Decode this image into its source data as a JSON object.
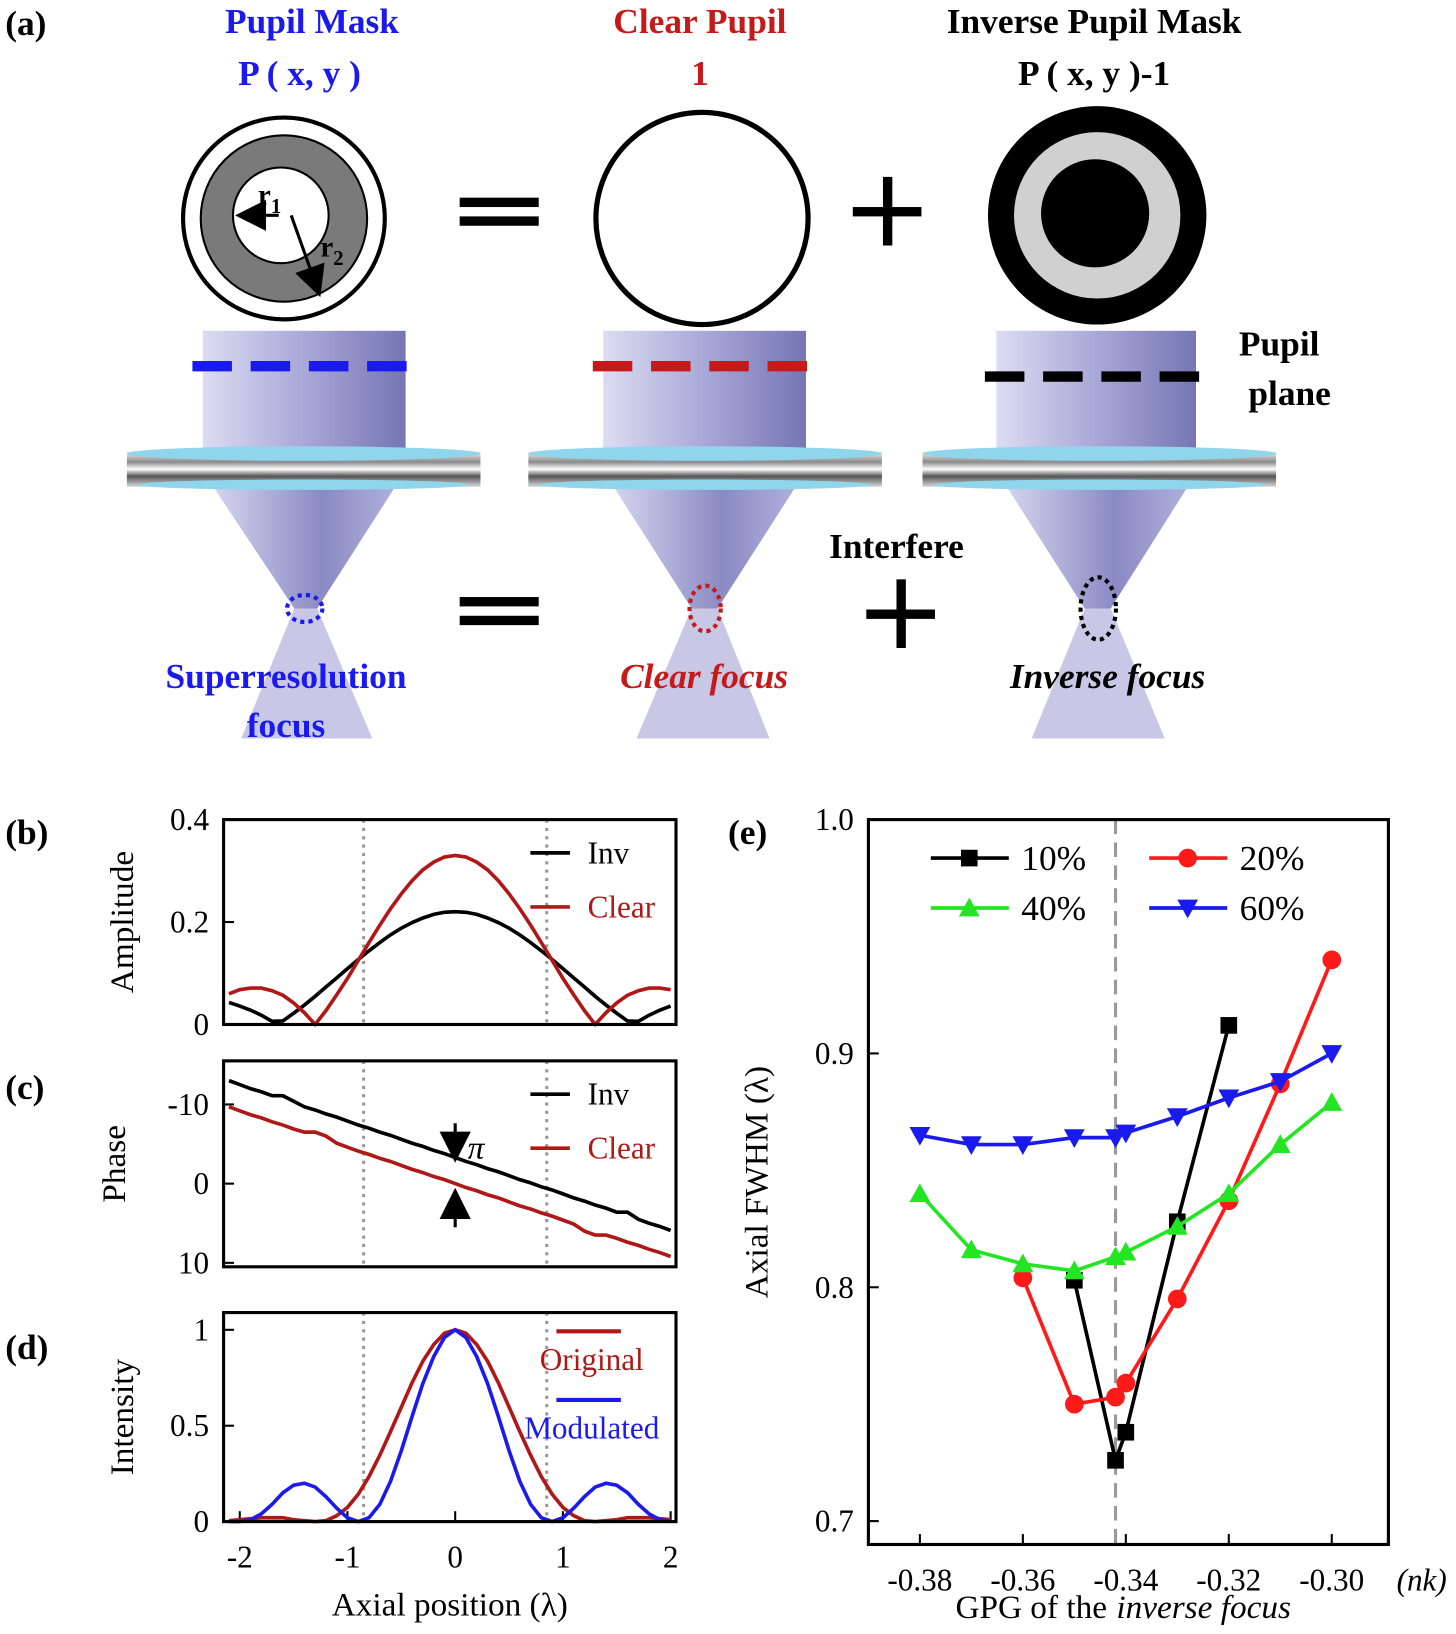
{
  "diagram": {
    "panel_label": "(a)",
    "columns": [
      {
        "title": "Pupil Mask",
        "formula": "P ( x, y )",
        "focus_label": [
          "Superresolution",
          "focus"
        ]
      },
      {
        "title": "Clear Pupil",
        "formula": "1",
        "focus_label": [
          "Clear focus"
        ]
      },
      {
        "title": "Inverse Pupil Mask",
        "formula": "P ( x, y )-1",
        "focus_label": [
          "Inverse focus"
        ]
      }
    ],
    "radius_labels": [
      {
        "base": "r",
        "sub": "1"
      },
      {
        "base": "r",
        "sub": "2"
      }
    ],
    "plane_label": [
      "Pupil",
      "plane"
    ],
    "interfere_label": "Interfere"
  },
  "chart_data": [
    {
      "type": "line",
      "panel_label": "(b)",
      "ylabel": "Amplitude",
      "x": [
        -2.1,
        -2.0,
        -1.9,
        -1.8,
        -1.7,
        -1.6,
        -1.5,
        -1.4,
        -1.3,
        -1.2,
        -1.1,
        -1.0,
        -0.9,
        -0.8,
        -0.7,
        -0.6,
        -0.5,
        -0.4,
        -0.3,
        -0.2,
        -0.1,
        0,
        0.1,
        0.2,
        0.3,
        0.4,
        0.5,
        0.6,
        0.7,
        0.8,
        0.9,
        1.0,
        1.1,
        1.2,
        1.3,
        1.4,
        1.5,
        1.6,
        1.7,
        1.8,
        1.9,
        2.0
      ],
      "series": [
        {
          "name": "Inv",
          "color": "#000000",
          "values": [
            0.043,
            0.036,
            0.028,
            0.018,
            0.006,
            0.007,
            0.022,
            0.038,
            0.055,
            0.073,
            0.091,
            0.109,
            0.127,
            0.144,
            0.16,
            0.175,
            0.188,
            0.199,
            0.208,
            0.215,
            0.219,
            0.22,
            0.219,
            0.215,
            0.208,
            0.199,
            0.188,
            0.175,
            0.16,
            0.144,
            0.127,
            0.109,
            0.091,
            0.073,
            0.055,
            0.038,
            0.022,
            0.007,
            0.006,
            0.018,
            0.028,
            0.036
          ]
        },
        {
          "name": "Clear",
          "color": "#b01818",
          "values": [
            0.06,
            0.068,
            0.071,
            0.071,
            0.066,
            0.057,
            0.042,
            0.023,
            0,
            0.027,
            0.058,
            0.09,
            0.125,
            0.16,
            0.194,
            0.226,
            0.255,
            0.281,
            0.302,
            0.317,
            0.327,
            0.33,
            0.327,
            0.317,
            0.302,
            0.281,
            0.255,
            0.226,
            0.194,
            0.16,
            0.125,
            0.09,
            0.058,
            0.027,
            0,
            0.023,
            0.042,
            0.057,
            0.066,
            0.071,
            0.071,
            0.068
          ]
        }
      ],
      "xlim": [
        -2.15,
        2.05
      ],
      "ylim": [
        0,
        0.4
      ],
      "yticks": [
        0,
        0.2,
        0.4
      ],
      "vlines": [
        -0.85,
        0.85
      ],
      "legend": "upper right",
      "grid": false
    },
    {
      "type": "line",
      "panel_label": "(c)",
      "ylabel": "Phase",
      "annotation": "π",
      "x": [
        -2.1,
        -2.0,
        -1.9,
        -1.8,
        -1.7,
        -1.6,
        -1.5,
        -1.4,
        -1.3,
        -1.2,
        -1.1,
        -1.0,
        -0.9,
        -0.8,
        -0.7,
        -0.6,
        -0.5,
        -0.4,
        -0.3,
        -0.2,
        -0.1,
        0,
        0.1,
        0.2,
        0.3,
        0.4,
        0.5,
        0.6,
        0.7,
        0.8,
        0.9,
        1.0,
        1.1,
        1.2,
        1.3,
        1.4,
        1.5,
        1.6,
        1.7,
        1.8,
        1.9,
        2.0
      ],
      "series": [
        {
          "name": "Inv",
          "color": "#000000",
          "values": [
            -13.0,
            -12.5,
            -12.0,
            -11.6,
            -11.1,
            -11.1,
            -10.4,
            -9.7,
            -9.3,
            -8.8,
            -8.4,
            -7.9,
            -7.4,
            -7.0,
            -6.5,
            -6.1,
            -5.6,
            -5.1,
            -4.7,
            -4.2,
            -3.8,
            -3.3,
            -2.8,
            -2.4,
            -1.9,
            -1.5,
            -1.0,
            -0.5,
            -0.1,
            0.4,
            0.8,
            1.3,
            1.8,
            2.2,
            2.7,
            3.1,
            3.6,
            3.6,
            4.5,
            5.0,
            5.4,
            5.9
          ]
        },
        {
          "name": "Clear",
          "color": "#b01818",
          "values": [
            -9.7,
            -9.2,
            -8.7,
            -8.3,
            -7.8,
            -7.4,
            -6.9,
            -6.5,
            -6.5,
            -6.0,
            -5.1,
            -4.6,
            -4.1,
            -3.7,
            -3.2,
            -2.8,
            -2.3,
            -1.8,
            -1.4,
            -0.9,
            -0.5,
            0,
            0.5,
            0.9,
            1.4,
            1.8,
            2.3,
            2.8,
            3.2,
            3.7,
            4.1,
            4.6,
            5.1,
            6.0,
            6.5,
            6.5,
            6.9,
            7.4,
            7.8,
            8.3,
            8.7,
            9.2
          ]
        }
      ],
      "xlim": [
        -2.15,
        2.05
      ],
      "ylim": [
        -15.5,
        10.5
      ],
      "y_inverted": true,
      "yticks": [
        -10,
        0,
        10
      ],
      "vlines": [
        -0.85,
        0.85
      ],
      "legend": "upper right",
      "grid": false
    },
    {
      "type": "line",
      "panel_label": "(d)",
      "ylabel": "Intensity",
      "xlabel": "Axial position (λ)",
      "x": [
        -2.1,
        -2.0,
        -1.9,
        -1.8,
        -1.7,
        -1.6,
        -1.5,
        -1.4,
        -1.3,
        -1.2,
        -1.1,
        -1.0,
        -0.9,
        -0.8,
        -0.7,
        -0.6,
        -0.5,
        -0.4,
        -0.3,
        -0.2,
        -0.1,
        0,
        0.1,
        0.2,
        0.3,
        0.4,
        0.5,
        0.6,
        0.7,
        0.8,
        0.9,
        1.0,
        1.1,
        1.2,
        1.3,
        1.4,
        1.5,
        1.6,
        1.7,
        1.8,
        1.9,
        2.0
      ],
      "series": [
        {
          "name": "Original",
          "color": "#b01818",
          "values": [
            0.005,
            0.01,
            0.015,
            0.02,
            0.02,
            0.02,
            0.01,
            0.005,
            0,
            0.005,
            0.031,
            0.074,
            0.143,
            0.235,
            0.346,
            0.469,
            0.597,
            0.725,
            0.837,
            0.923,
            0.982,
            1,
            0.982,
            0.923,
            0.837,
            0.725,
            0.597,
            0.469,
            0.346,
            0.235,
            0.143,
            0.074,
            0.031,
            0.005,
            0,
            0.005,
            0.01,
            0.02,
            0.02,
            0.02,
            0.015,
            0.01
          ]
        },
        {
          "name": "Modulated",
          "color": "#1a1aee",
          "values": [
            0,
            0,
            0.01,
            0.04,
            0.09,
            0.15,
            0.19,
            0.2,
            0.18,
            0.13,
            0.07,
            0.02,
            0,
            0.02,
            0.09,
            0.21,
            0.37,
            0.55,
            0.72,
            0.86,
            0.96,
            1,
            0.96,
            0.86,
            0.72,
            0.55,
            0.37,
            0.21,
            0.09,
            0.02,
            0,
            0.02,
            0.07,
            0.13,
            0.18,
            0.2,
            0.19,
            0.15,
            0.09,
            0.04,
            0.01,
            0
          ]
        }
      ],
      "xlim": [
        -2.15,
        2.05
      ],
      "ylim": [
        0,
        1.09
      ],
      "xticks": [
        -2,
        -1,
        0,
        1,
        2
      ],
      "yticks": [
        0,
        0.5,
        1
      ],
      "vlines": [
        -0.85,
        0.85
      ],
      "legend": "upper right",
      "grid": false
    },
    {
      "type": "line",
      "panel_label": "(e)",
      "ylabel": "Axial FWHM (λ)",
      "xlabel": [
        "GPG of the",
        "inverse focus"
      ],
      "xunit": "(nk)",
      "series": [
        {
          "name": "10%",
          "color": "#000000",
          "marker": "square",
          "x": [
            -0.35,
            -0.342,
            -0.34,
            -0.33,
            -0.32
          ],
          "values": [
            0.803,
            0.726,
            0.738,
            0.828,
            0.912
          ]
        },
        {
          "name": "20%",
          "color": "#ff1a1a",
          "marker": "circle",
          "x": [
            -0.36,
            -0.35,
            -0.342,
            -0.34,
            -0.33,
            -0.32,
            -0.31,
            -0.3
          ],
          "values": [
            0.804,
            0.75,
            0.753,
            0.759,
            0.795,
            0.837,
            0.887,
            0.94
          ]
        },
        {
          "name": "40%",
          "color": "#22e622",
          "marker": "triangle",
          "x": [
            -0.38,
            -0.37,
            -0.36,
            -0.35,
            -0.342,
            -0.34,
            -0.33,
            -0.32,
            -0.31,
            -0.3
          ],
          "values": [
            0.84,
            0.816,
            0.81,
            0.807,
            0.813,
            0.815,
            0.826,
            0.84,
            0.861,
            0.879
          ]
        },
        {
          "name": "60%",
          "color": "#1a1aee",
          "marker": "triangle-down",
          "x": [
            -0.38,
            -0.37,
            -0.36,
            -0.35,
            -0.342,
            -0.34,
            -0.33,
            -0.32,
            -0.31,
            -0.3
          ],
          "values": [
            0.865,
            0.861,
            0.861,
            0.864,
            0.864,
            0.866,
            0.873,
            0.881,
            0.888,
            0.9
          ]
        }
      ],
      "xlim": [
        -0.39,
        -0.289
      ],
      "ylim": [
        0.69,
        1.0
      ],
      "xticks": [
        -0.38,
        -0.36,
        -0.34,
        -0.32,
        {
          "value": -0.3,
          "label": "-0.30"
        }
      ],
      "yticks": [
        0.7,
        0.8,
        0.9,
        {
          "value": 1.0,
          "label": "1.0"
        }
      ],
      "vlines": [
        -0.342
      ],
      "legend": "upper left",
      "grid": false
    }
  ]
}
